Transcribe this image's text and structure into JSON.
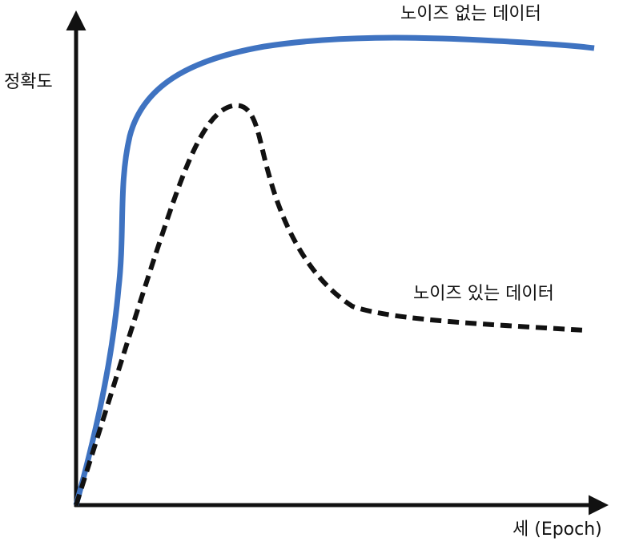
{
  "y_axis_label": "정확도",
  "x_axis_label": "세 (Epoch)",
  "curves": [
    {
      "label": "노이즈 없는 데이터"
    },
    {
      "label": "노이즈 있는 데이터"
    }
  ]
}
